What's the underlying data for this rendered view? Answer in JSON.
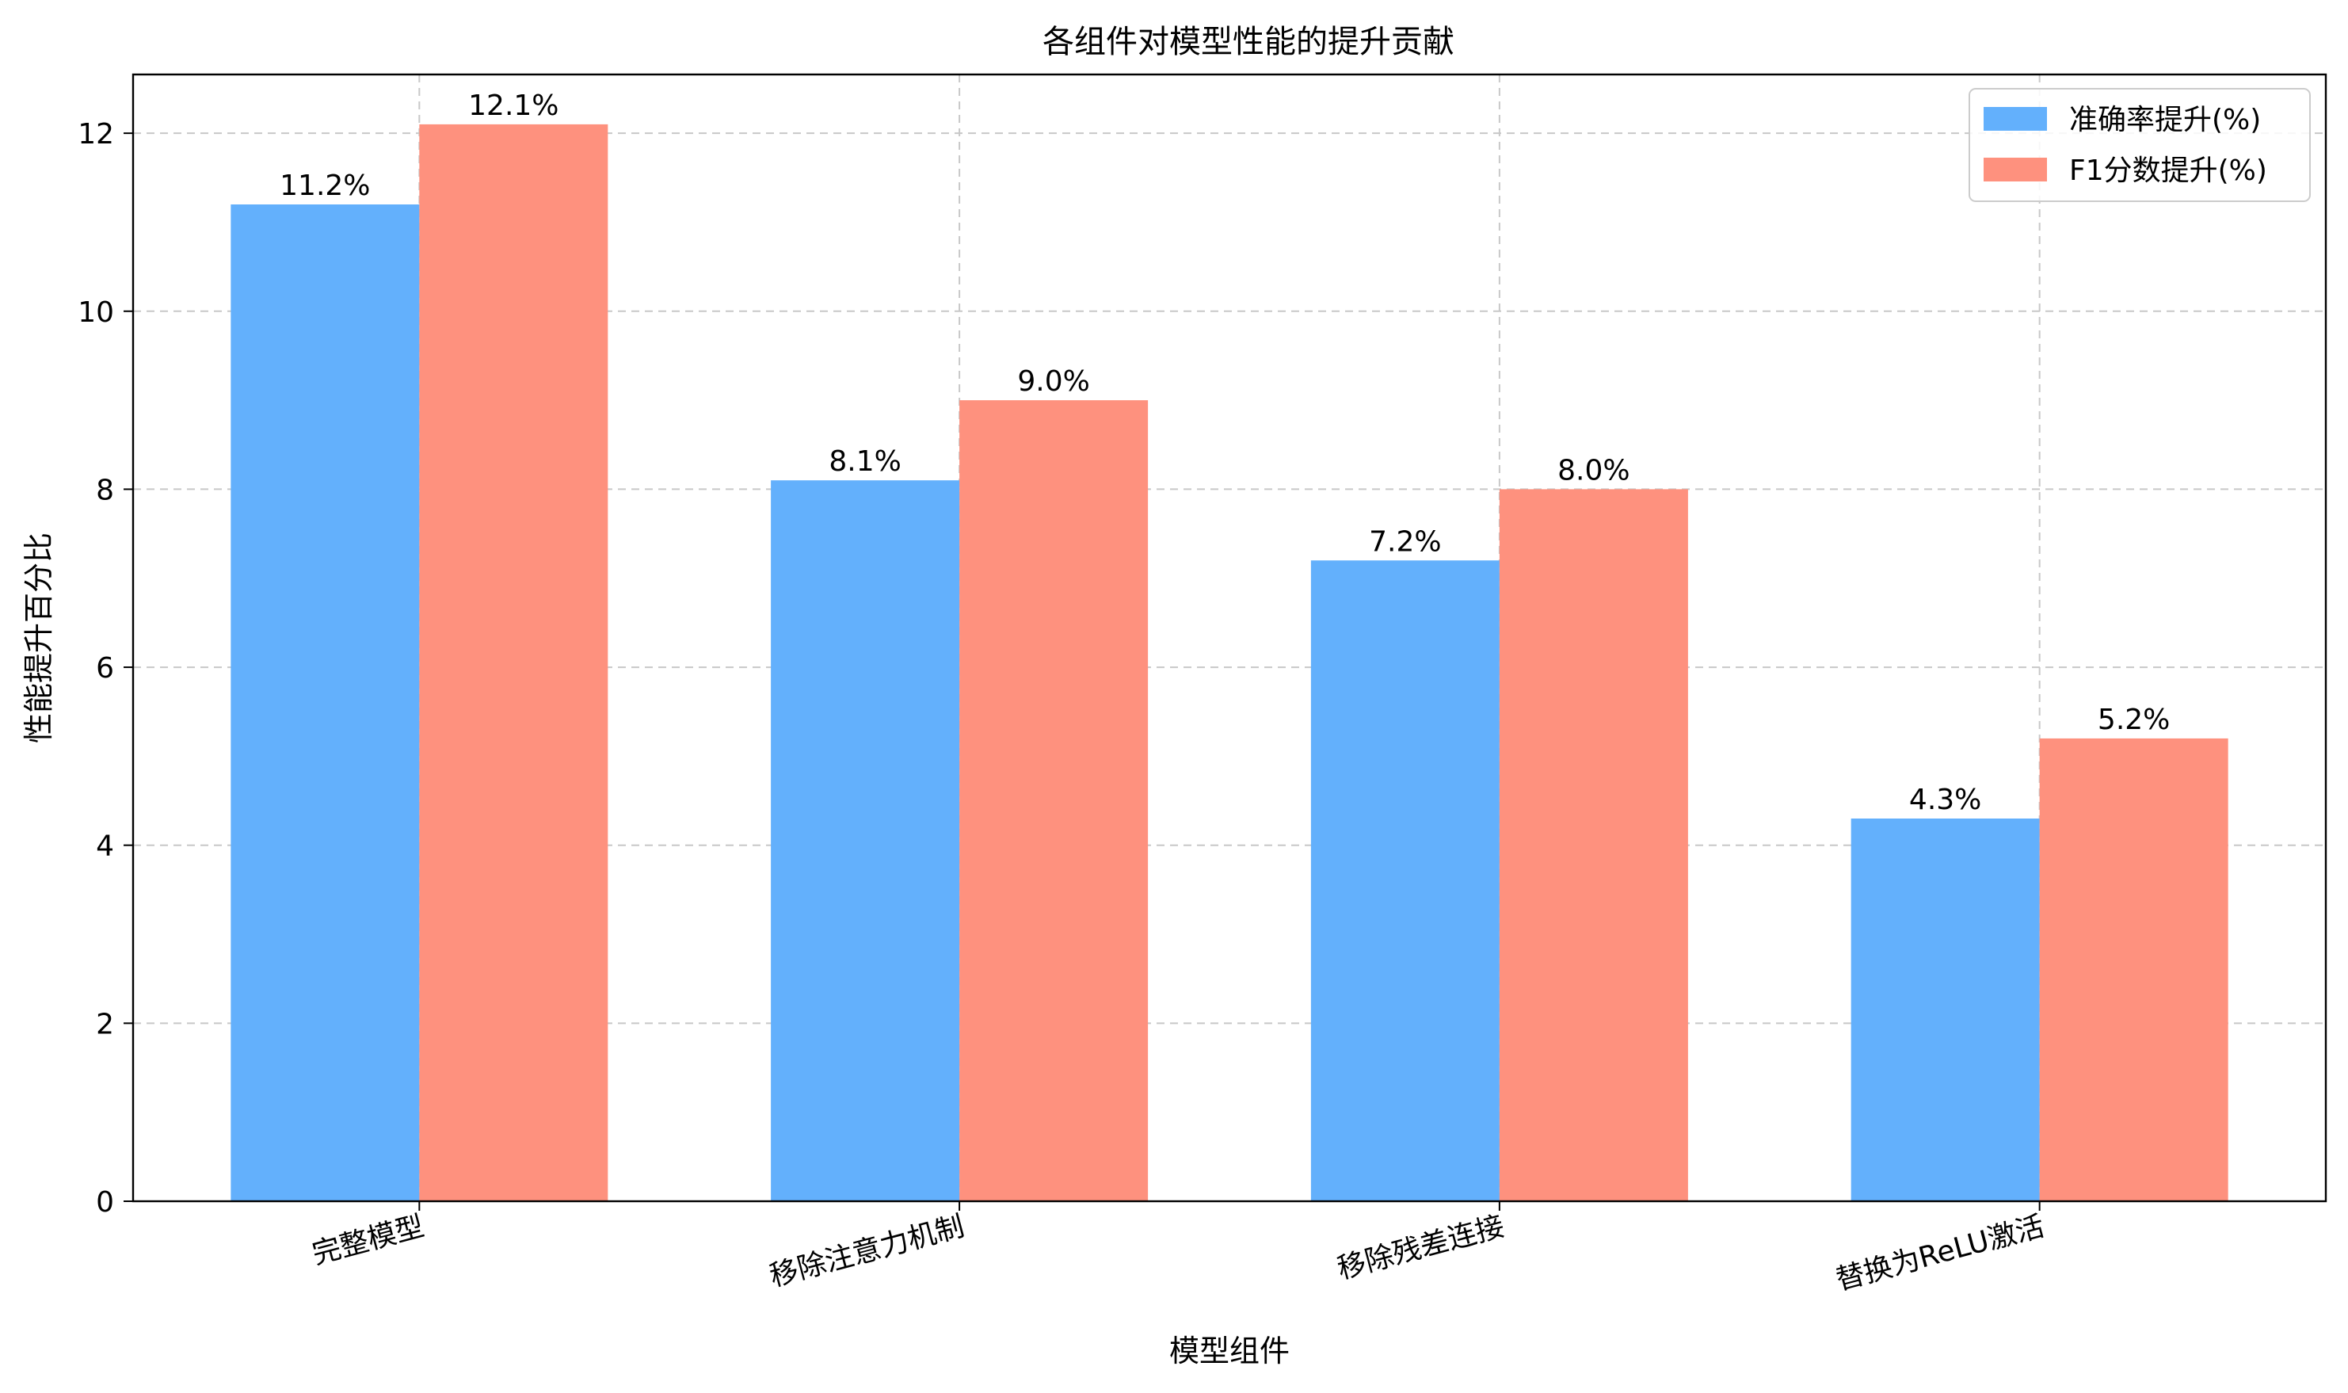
{
  "chart_data": {
    "type": "bar",
    "title": "各组件对模型性能的提升贡献",
    "xlabel": "模型组件",
    "ylabel": "性能提升百分比",
    "categories": [
      "完整模型",
      "移除注意力机制",
      "移除残差连接",
      "替换为ReLU激活"
    ],
    "series": [
      {
        "name": "准确率提升(%)",
        "values": [
          11.2,
          8.1,
          7.2,
          4.3
        ],
        "color": "#63b0fc"
      },
      {
        "name": "F1分数提升(%)",
        "values": [
          12.1,
          9.0,
          8.0,
          5.2
        ],
        "color": "#fe917e"
      }
    ],
    "value_label_format": "{v}%",
    "ylim": [
      0,
      12.66
    ],
    "yticks": [
      0,
      2,
      4,
      6,
      8,
      10,
      12
    ],
    "grid": true,
    "legend_position": "top-right",
    "x_tick_rotation_deg": -15
  }
}
